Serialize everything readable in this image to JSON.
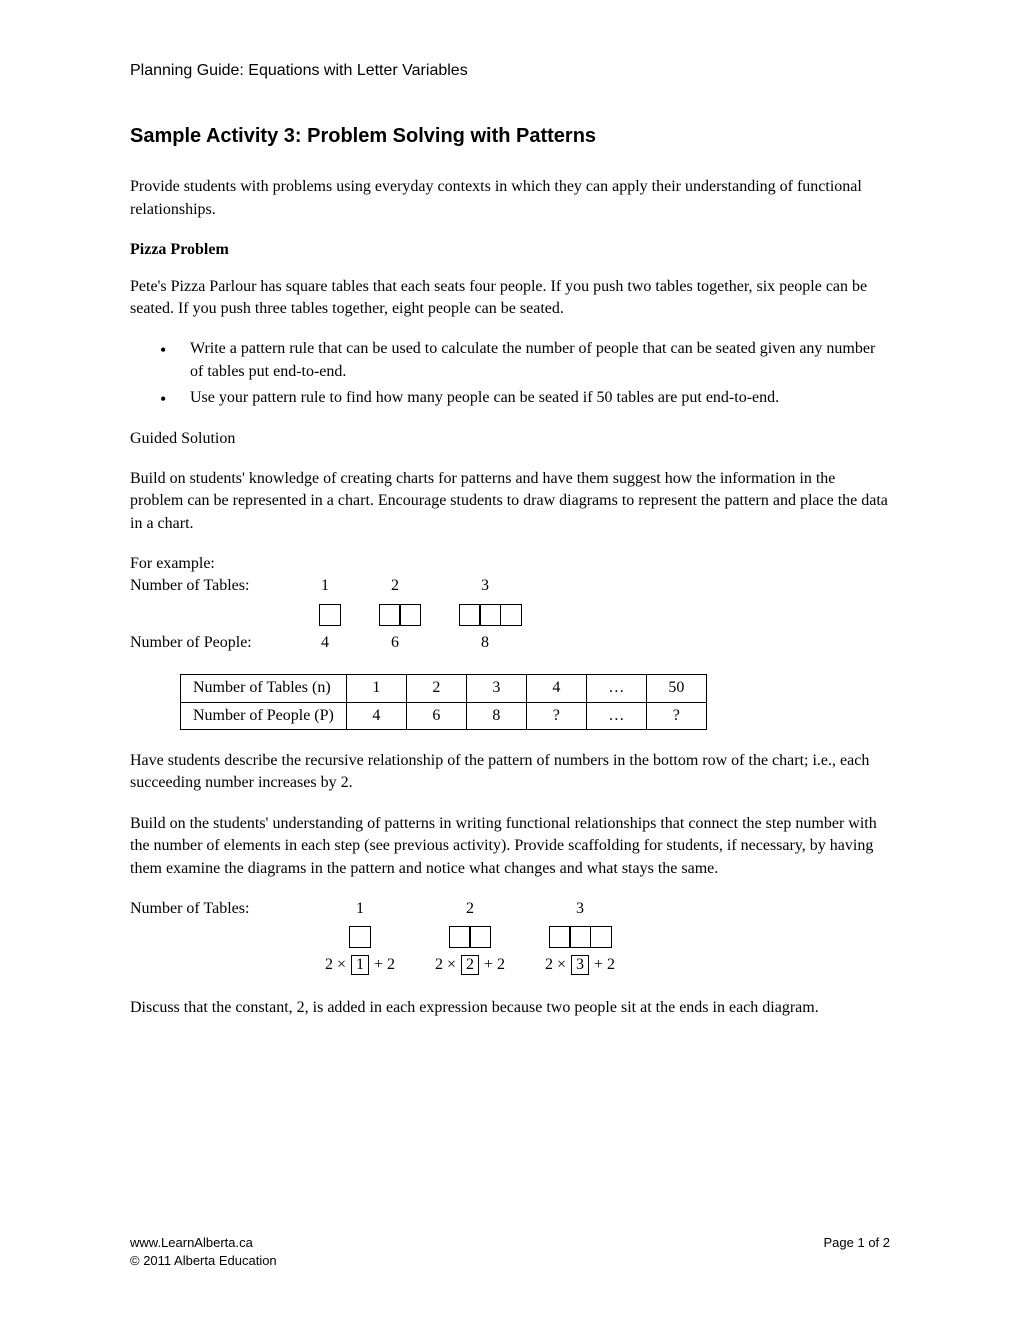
{
  "header": {
    "guide": "Planning Guide: Equations with Letter Variables"
  },
  "title": "Sample Activity 3: Problem Solving with Patterns",
  "intro": "Provide students with problems using everyday contexts in which they can apply their understanding of functional relationships.",
  "problem": {
    "heading": "Pizza Problem",
    "text": "Pete's Pizza Parlour has square tables that each seats four people. If you push two tables together, six people can be seated. If you push three tables together, eight people can be seated.",
    "bullets": [
      "Write a pattern rule that can be used to calculate the number of people that can be seated given any number of tables put end-to-end.",
      "Use your pattern rule to find how many people can be seated if 50 tables are put end-to-end."
    ]
  },
  "guided": {
    "heading": "Guided Solution",
    "text": "Build on students' knowledge of creating charts for patterns and have them suggest how the information in the problem can be represented in a chart. Encourage students to draw diagrams to represent the pattern and place the data in a chart."
  },
  "example": {
    "lead": "For example:",
    "tables_label": "Number of Tables:",
    "people_label": "Number of People:",
    "tables": [
      "1",
      "2",
      "3"
    ],
    "people": [
      "4",
      "6",
      "8"
    ],
    "square_counts": [
      1,
      2,
      3
    ]
  },
  "chart": {
    "row1_label": "Number of Tables (n)",
    "row2_label": "Number of People (P)",
    "row1": [
      "1",
      "2",
      "3",
      "4",
      "…",
      "50"
    ],
    "row2": [
      "4",
      "6",
      "8",
      "?",
      "…",
      "?"
    ]
  },
  "recursive": "Have students describe the recursive relationship of the pattern of numbers in the bottom row of the chart; i.e., each succeeding number increases by 2.",
  "functional": "Build on the students' understanding of patterns in writing functional relationships that connect the step number with the number of elements in each step (see previous activity). Provide scaffolding for students, if necessary, by having them examine the diagrams in the pattern and notice what changes and what stays the same.",
  "pattern": {
    "tables_label": "Number of Tables:",
    "tables": [
      "1",
      "2",
      "3"
    ],
    "square_counts": [
      1,
      2,
      3
    ],
    "boxed": [
      "1",
      "2",
      "3"
    ]
  },
  "discuss": "Discuss that the constant, 2, is added in each expression because two people sit at the ends in each diagram.",
  "footer": {
    "url": "www.LearnAlberta.ca",
    "copyright": "© 2011 Alberta Education",
    "page": "Page 1 of 2"
  }
}
